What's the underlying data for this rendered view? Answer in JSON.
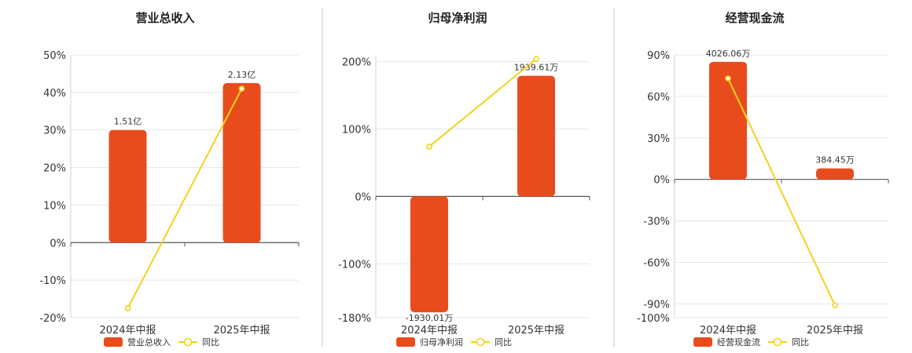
{
  "colors": {
    "bar": "#e84c1d",
    "line": "#f2d21b",
    "grid": "#e3e6ef",
    "axis": "#555555",
    "divider": "#c8c8c8"
  },
  "legend_line_label": "同比",
  "chart_data": [
    {
      "type": "bar",
      "title": "营业总收入",
      "categories": [
        "2024年中报",
        "2025年中报"
      ],
      "series": [
        {
          "name": "营业总收入",
          "kind": "bar",
          "values": [
            30,
            42.5
          ],
          "labels": [
            "1.51亿",
            "2.13亿"
          ]
        },
        {
          "name": "同比",
          "kind": "line",
          "values": [
            -17.5,
            41
          ]
        }
      ],
      "ylim": [
        -20,
        50
      ],
      "yticks": [
        -20,
        -10,
        0,
        10,
        20,
        30,
        40,
        50
      ],
      "ytick_labels": [
        "-20%",
        "-10%",
        "0%",
        "10%",
        "20%",
        "30%",
        "40%",
        "50%"
      ],
      "grid": true,
      "legend": "bottom"
    },
    {
      "type": "bar",
      "title": "归母净利润",
      "categories": [
        "2024年中报",
        "2025年中报"
      ],
      "series": [
        {
          "name": "归母净利润",
          "kind": "bar",
          "values": [
            -172,
            179
          ],
          "labels": [
            "-1930.01万",
            "1939.61万"
          ]
        },
        {
          "name": "同比",
          "kind": "line",
          "values": [
            74,
            204
          ]
        }
      ],
      "ylim": [
        -180,
        210
      ],
      "yticks": [
        -180,
        -100,
        0,
        100,
        200
      ],
      "ytick_labels": [
        "-180%",
        "-100%",
        "0%",
        "100%",
        "200%"
      ],
      "grid": true,
      "legend": "bottom"
    },
    {
      "type": "bar",
      "title": "经营现金流",
      "categories": [
        "2024年中报",
        "2025年中报"
      ],
      "series": [
        {
          "name": "经营现金流",
          "kind": "bar",
          "values": [
            85,
            8
          ],
          "labels": [
            "4026.06万",
            "384.45万"
          ]
        },
        {
          "name": "同比",
          "kind": "line",
          "values": [
            73,
            -91
          ]
        }
      ],
      "ylim": [
        -100,
        90
      ],
      "yticks": [
        -100,
        -90,
        -60,
        -30,
        0,
        30,
        60,
        90
      ],
      "ytick_labels": [
        "-100%",
        "-90%",
        "-60%",
        "-30%",
        "0%",
        "30%",
        "60%",
        "90%"
      ],
      "grid": true,
      "legend": "bottom"
    }
  ]
}
